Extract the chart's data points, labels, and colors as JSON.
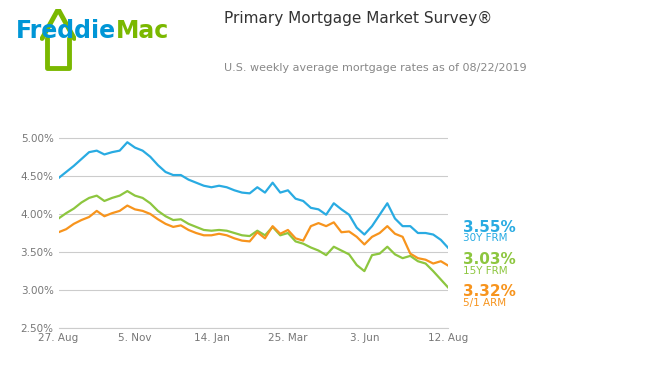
{
  "title": "Primary Mortgage Market Survey®",
  "subtitle": "U.S. weekly average mortgage rates as of 08/22/2019",
  "x_labels": [
    "27. Aug",
    "5. Nov",
    "14. Jan",
    "25. Mar",
    "3. Jun",
    "12. Aug"
  ],
  "ylim": [
    2.5,
    5.2
  ],
  "ytick_vals": [
    2.5,
    3.0,
    3.5,
    4.0,
    4.5,
    5.0
  ],
  "ytick_labels": [
    "2.50%",
    "3.00%",
    "3.50%",
    "4.00%",
    "4.50%",
    "5.00%"
  ],
  "color_30y": "#29ABE2",
  "color_15y": "#8DC63F",
  "color_arm": "#F7941D",
  "label_30y_pct": "3.55%",
  "label_30y_name": "30Y FRM",
  "label_15y_pct": "3.03%",
  "label_15y_name": "15Y FRM",
  "label_arm_pct": "3.32%",
  "label_arm_name": "5/1 ARM",
  "bg_color": "#FFFFFF",
  "grid_color": "#CCCCCC",
  "freddie_blue": "#0096D6",
  "freddie_green": "#7AB800",
  "x_tick_positions": [
    0,
    10,
    20,
    30,
    40,
    51
  ],
  "x_30y": [
    0,
    1,
    2,
    3,
    4,
    5,
    6,
    7,
    8,
    9,
    10,
    11,
    12,
    13,
    14,
    15,
    16,
    17,
    18,
    19,
    20,
    21,
    22,
    23,
    24,
    25,
    26,
    27,
    28,
    29,
    30,
    31,
    32,
    33,
    34,
    35,
    36,
    37,
    38,
    39,
    40,
    41,
    42,
    43,
    44,
    45,
    46,
    47,
    48,
    49,
    50,
    51
  ],
  "y_30y": [
    4.47,
    4.55,
    4.63,
    4.72,
    4.81,
    4.83,
    4.78,
    4.81,
    4.83,
    4.94,
    4.87,
    4.83,
    4.75,
    4.64,
    4.55,
    4.51,
    4.51,
    4.45,
    4.41,
    4.37,
    4.35,
    4.37,
    4.35,
    4.31,
    4.28,
    4.27,
    4.35,
    4.28,
    4.41,
    4.28,
    4.31,
    4.2,
    4.17,
    4.08,
    4.06,
    3.99,
    4.14,
    4.06,
    3.99,
    3.82,
    3.73,
    3.84,
    3.99,
    4.14,
    3.94,
    3.84,
    3.84,
    3.75,
    3.75,
    3.73,
    3.66,
    3.55
  ],
  "y_15y": [
    3.94,
    4.01,
    4.07,
    4.15,
    4.21,
    4.24,
    4.17,
    4.21,
    4.24,
    4.3,
    4.24,
    4.21,
    4.14,
    4.04,
    3.97,
    3.92,
    3.93,
    3.87,
    3.83,
    3.79,
    3.78,
    3.79,
    3.78,
    3.75,
    3.72,
    3.71,
    3.78,
    3.72,
    3.83,
    3.72,
    3.75,
    3.64,
    3.61,
    3.56,
    3.52,
    3.46,
    3.57,
    3.52,
    3.47,
    3.33,
    3.25,
    3.46,
    3.48,
    3.57,
    3.47,
    3.42,
    3.45,
    3.38,
    3.35,
    3.25,
    3.14,
    3.03
  ],
  "y_arm": [
    3.76,
    3.8,
    3.87,
    3.92,
    3.96,
    4.04,
    3.97,
    4.01,
    4.04,
    4.11,
    4.06,
    4.04,
    4.0,
    3.93,
    3.87,
    3.83,
    3.85,
    3.79,
    3.75,
    3.72,
    3.72,
    3.74,
    3.72,
    3.68,
    3.65,
    3.64,
    3.76,
    3.68,
    3.84,
    3.74,
    3.79,
    3.68,
    3.65,
    3.84,
    3.88,
    3.84,
    3.89,
    3.76,
    3.77,
    3.7,
    3.6,
    3.7,
    3.75,
    3.84,
    3.74,
    3.7,
    3.48,
    3.42,
    3.4,
    3.35,
    3.38,
    3.32
  ]
}
